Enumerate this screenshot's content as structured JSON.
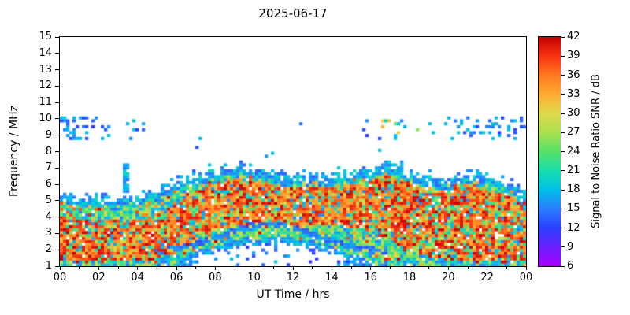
{
  "chart_data": {
    "type": "heatmap",
    "title": "2025-06-17",
    "xlabel": "UT Time / hrs",
    "ylabel": "Frequency / MHz",
    "colorbar_label": "Signal to Noise Ratio SNR / dB",
    "x_range_hours": [
      0,
      24
    ],
    "x_tick_hours": [
      0,
      2,
      4,
      6,
      8,
      10,
      12,
      14,
      16,
      18,
      20,
      22,
      24
    ],
    "x_tick_labels": [
      "00",
      "02",
      "04",
      "06",
      "08",
      "10",
      "12",
      "14",
      "16",
      "18",
      "20",
      "22",
      "00"
    ],
    "x_minor_tick_hours": [
      1,
      3,
      5,
      7,
      9,
      11,
      13,
      15,
      17,
      19,
      21,
      23
    ],
    "y_range_mhz": [
      1,
      15
    ],
    "y_tick_labels": [
      "1",
      "2",
      "3",
      "4",
      "5",
      "6",
      "7",
      "8",
      "9",
      "10",
      "11",
      "12",
      "13",
      "14",
      "15"
    ],
    "snr_range_db": [
      6,
      42
    ],
    "colorbar_tick_labels": [
      "6",
      "9",
      "12",
      "15",
      "18",
      "21",
      "24",
      "27",
      "30",
      "33",
      "36",
      "39",
      "42"
    ],
    "colormap_stops": [
      {
        "v": 6,
        "color": "#aa00ff"
      },
      {
        "v": 9,
        "color": "#6a1fff"
      },
      {
        "v": 12,
        "color": "#2b3fff"
      },
      {
        "v": 15,
        "color": "#2a7fff"
      },
      {
        "v": 18,
        "color": "#00bfe8"
      },
      {
        "v": 21,
        "color": "#17dfae"
      },
      {
        "v": 24,
        "color": "#57e168"
      },
      {
        "v": 27,
        "color": "#a8e04e"
      },
      {
        "v": 30,
        "color": "#dfd94b"
      },
      {
        "v": 33,
        "color": "#ffab33"
      },
      {
        "v": 36,
        "color": "#ff7a1f"
      },
      {
        "v": 39,
        "color": "#f93311"
      },
      {
        "v": 42,
        "color": "#c40000"
      }
    ],
    "spectrogram_model": {
      "seed": 20250617,
      "band_top_mhz_by_hour": [
        5.4,
        5.2,
        5.1,
        5.0,
        5.3,
        5.6,
        6.1,
        6.5,
        6.8,
        7.0,
        6.9,
        6.6,
        6.4,
        6.5,
        6.5,
        6.6,
        6.9,
        7.2,
        6.7,
        6.3,
        6.3,
        6.7,
        6.3,
        6.0,
        5.6
      ],
      "band_bottom_mhz_by_hour": [
        1.0,
        1.0,
        1.0,
        1.0,
        1.0,
        1.0,
        1.1,
        1.5,
        1.9,
        2.2,
        2.4,
        2.5,
        2.4,
        2.2,
        1.9,
        1.4,
        1.0,
        1.0,
        1.0,
        1.0,
        1.0,
        1.0,
        1.0,
        1.0,
        1.0
      ],
      "red_zone_low_mhz_by_hour": [
        1.3,
        1.3,
        1.3,
        1.3,
        1.3,
        1.4,
        1.8,
        2.6,
        3.2,
        3.5,
        3.6,
        3.6,
        3.6,
        3.6,
        3.5,
        3.4,
        3.2,
        2.6,
        2.0,
        1.6,
        1.4,
        1.4,
        1.4,
        1.3,
        1.3
      ],
      "red_zone_high_mhz_by_hour": [
        4.0,
        3.9,
        3.8,
        3.8,
        3.9,
        4.2,
        4.8,
        5.6,
        6.1,
        6.4,
        6.3,
        6.0,
        5.8,
        5.9,
        5.9,
        6.0,
        6.3,
        6.6,
        6.1,
        5.7,
        5.7,
        6.1,
        5.7,
        5.4,
        5.0
      ],
      "sporadic_band_mhz": [
        8.7,
        10.2
      ],
      "sporadic_night_hours": [
        [
          0,
          4.5
        ],
        [
          15.5,
          24
        ]
      ],
      "trace_arc": {
        "hours": [
          4.8,
          16.8
        ],
        "base_mhz": 1.85,
        "peak_add_mhz": 1.75,
        "center_hour": 10.8,
        "width_hours": 3.4
      },
      "isolated_patch": {
        "hours": [
          3.3,
          3.55
        ],
        "mhz": [
          5.4,
          7.3
        ]
      }
    }
  }
}
